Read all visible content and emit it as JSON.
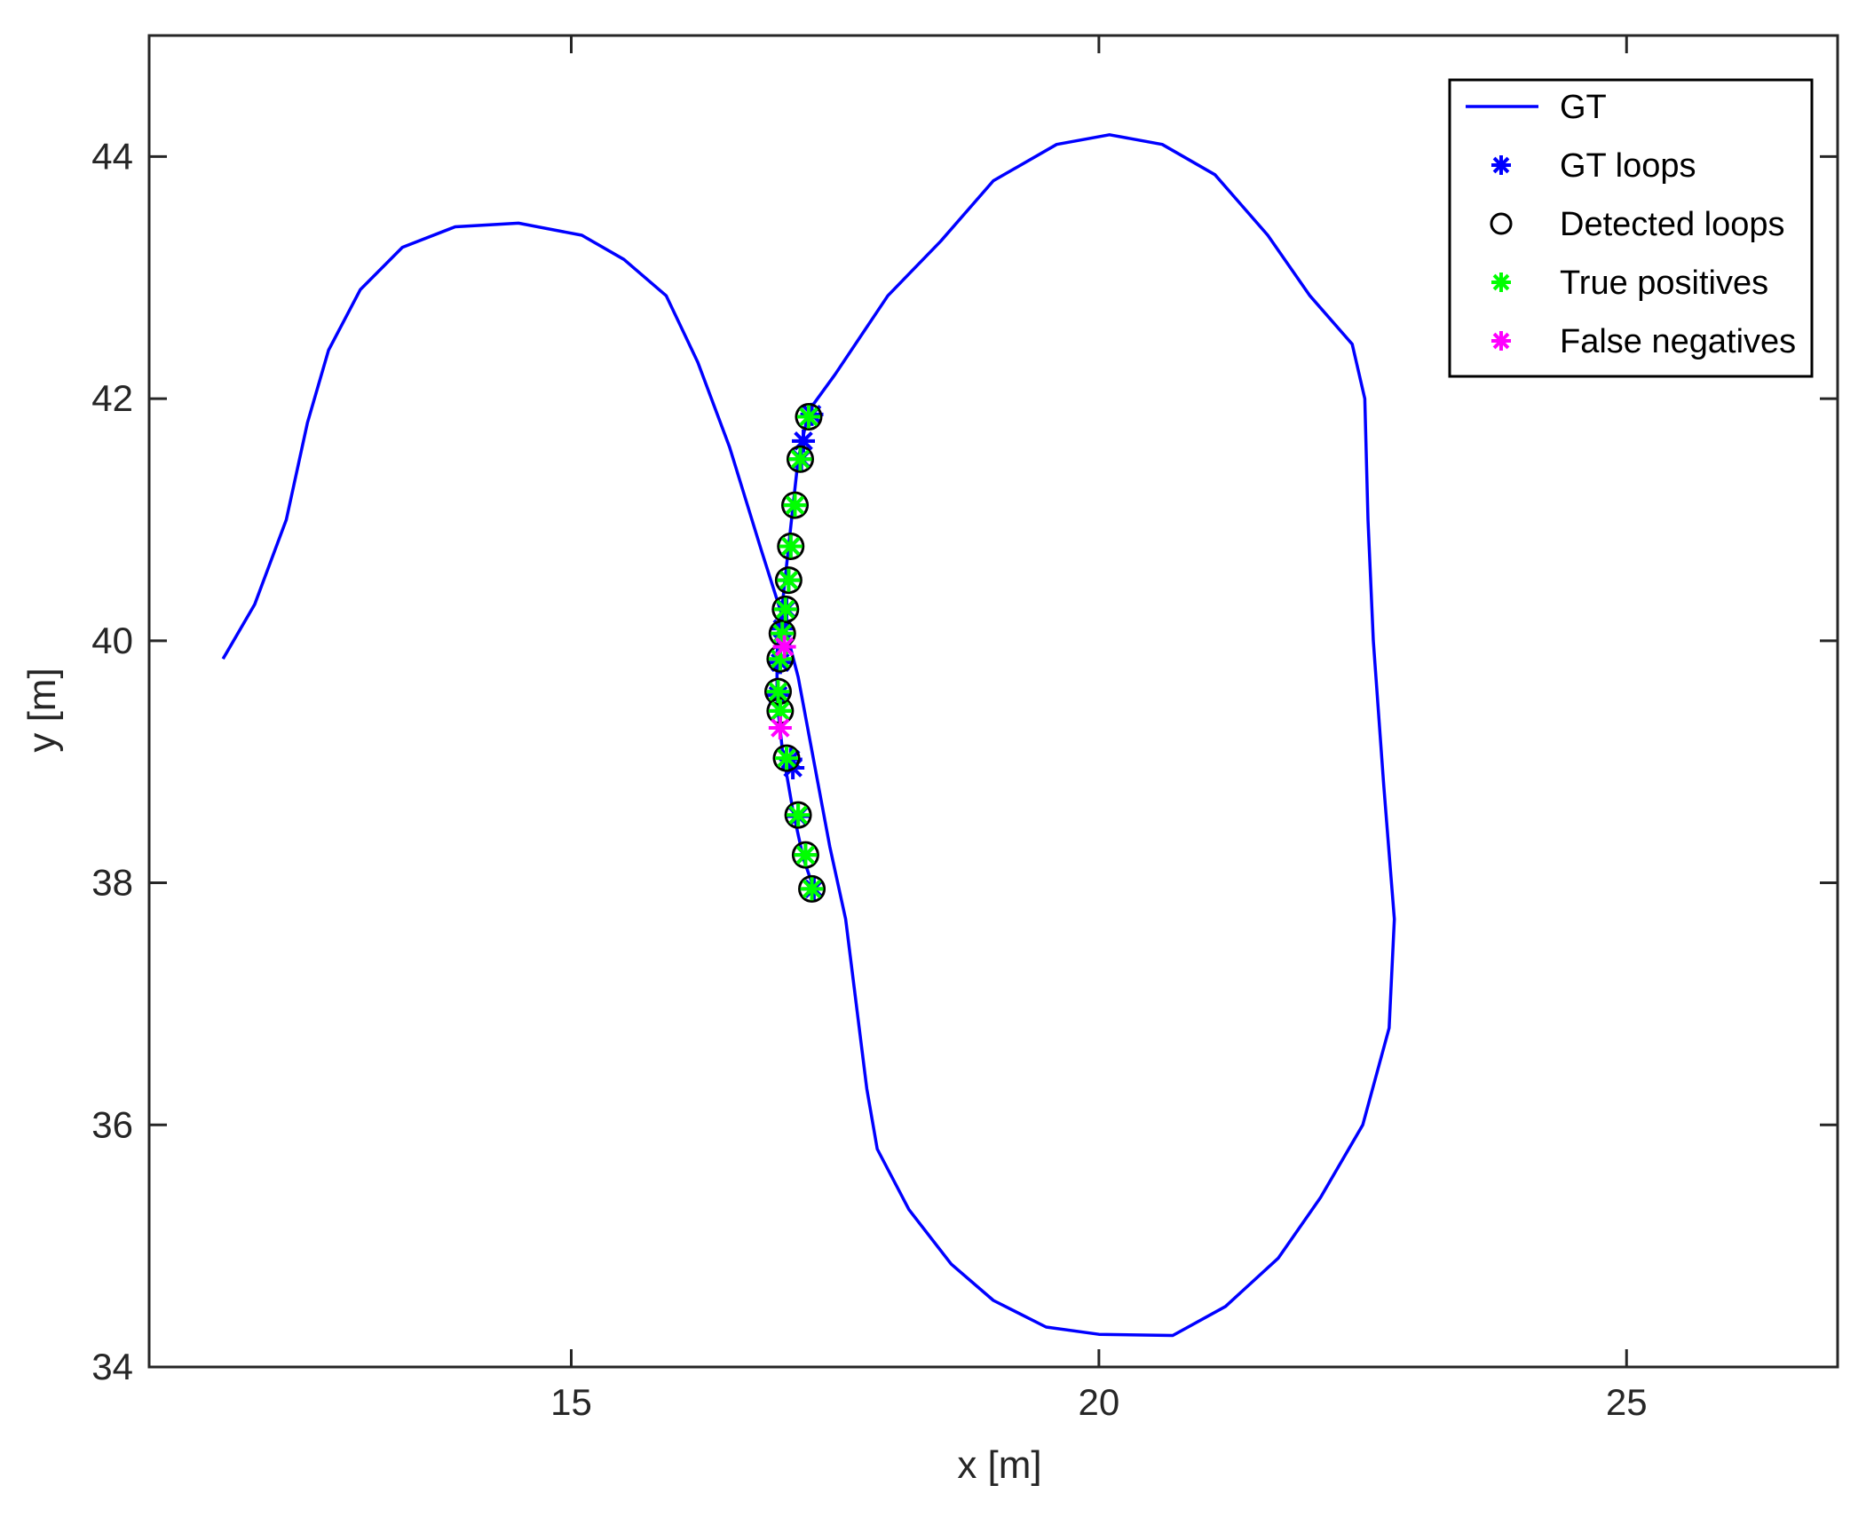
{
  "chart_data": {
    "type": "line",
    "xlabel": "x [m]",
    "ylabel": "y [m]",
    "xlim": [
      11,
      27
    ],
    "ylim": [
      34,
      45
    ],
    "xticks": [
      15,
      20,
      25
    ],
    "yticks": [
      34,
      36,
      38,
      40,
      42,
      44
    ],
    "grid": false,
    "legend_position": "top-right",
    "colors": {
      "gt": "#0000ff",
      "gt_loops": "#0000ff",
      "detected_loops": "#000000",
      "true_positives": "#00ff00",
      "false_negatives": "#ff00ff"
    },
    "legend": [
      {
        "label": "GT",
        "marker": "line",
        "color": "#0000ff"
      },
      {
        "label": "GT loops",
        "marker": "asterisk",
        "color": "#0000ff"
      },
      {
        "label": "Detected loops",
        "marker": "circle",
        "color": "#000000"
      },
      {
        "label": "True positives",
        "marker": "asterisk",
        "color": "#00ff00"
      },
      {
        "label": "False negatives",
        "marker": "asterisk",
        "color": "#ff00ff"
      }
    ],
    "series": [
      {
        "name": "GT",
        "kind": "line",
        "points": [
          [
            11.7,
            39.85
          ],
          [
            12.0,
            40.3
          ],
          [
            12.3,
            41.0
          ],
          [
            12.5,
            41.8
          ],
          [
            12.7,
            42.4
          ],
          [
            13.0,
            42.9
          ],
          [
            13.4,
            43.25
          ],
          [
            13.9,
            43.42
          ],
          [
            14.5,
            43.45
          ],
          [
            15.1,
            43.35
          ],
          [
            15.5,
            43.15
          ],
          [
            15.9,
            42.85
          ],
          [
            16.2,
            42.3
          ],
          [
            16.5,
            41.6
          ],
          [
            16.8,
            40.75
          ],
          [
            17.0,
            40.2
          ],
          [
            17.15,
            39.7
          ],
          [
            17.3,
            39.0
          ],
          [
            17.45,
            38.3
          ],
          [
            17.6,
            37.7
          ],
          [
            17.7,
            37.0
          ],
          [
            17.8,
            36.3
          ],
          [
            17.9,
            35.8
          ],
          [
            18.2,
            35.3
          ],
          [
            18.6,
            34.85
          ],
          [
            19.0,
            34.55
          ],
          [
            19.5,
            34.33
          ],
          [
            20.0,
            34.27
          ],
          [
            20.7,
            34.26
          ],
          [
            21.2,
            34.5
          ],
          [
            21.7,
            34.9
          ],
          [
            22.1,
            35.4
          ],
          [
            22.5,
            36.0
          ],
          [
            22.75,
            36.8
          ],
          [
            22.8,
            37.7
          ],
          [
            22.7,
            38.8
          ],
          [
            22.6,
            40.0
          ],
          [
            22.55,
            41.0
          ],
          [
            22.52,
            42.0
          ],
          [
            22.4,
            42.45
          ],
          [
            22.0,
            42.85
          ],
          [
            21.6,
            43.35
          ],
          [
            21.1,
            43.85
          ],
          [
            20.6,
            44.1
          ],
          [
            20.1,
            44.18
          ],
          [
            19.6,
            44.1
          ],
          [
            19.0,
            43.8
          ],
          [
            18.5,
            43.3
          ],
          [
            18.0,
            42.85
          ],
          [
            17.5,
            42.2
          ],
          [
            17.25,
            41.9
          ],
          [
            17.15,
            41.5
          ],
          [
            17.1,
            41.1
          ],
          [
            17.05,
            40.7
          ],
          [
            17.0,
            40.3
          ],
          [
            16.95,
            39.9
          ],
          [
            16.95,
            39.5
          ],
          [
            17.0,
            39.1
          ],
          [
            17.1,
            38.6
          ],
          [
            17.2,
            38.2
          ],
          [
            17.3,
            37.95
          ]
        ]
      },
      {
        "name": "GT loops",
        "kind": "markers",
        "points": [
          [
            17.28,
            41.87
          ],
          [
            17.2,
            41.65
          ],
          [
            17.18,
            41.5
          ],
          [
            17.12,
            41.12
          ],
          [
            17.08,
            40.78
          ],
          [
            17.06,
            40.5
          ],
          [
            17.04,
            40.26
          ],
          [
            17.0,
            40.1
          ],
          [
            16.98,
            39.82
          ],
          [
            16.96,
            39.55
          ],
          [
            16.98,
            39.42
          ],
          [
            17.08,
            39.02
          ],
          [
            17.1,
            38.95
          ],
          [
            17.15,
            38.55
          ],
          [
            17.22,
            38.23
          ],
          [
            17.3,
            37.95
          ]
        ]
      },
      {
        "name": "Detected loops",
        "kind": "markers",
        "points": [
          [
            17.25,
            41.85
          ],
          [
            17.17,
            41.5
          ],
          [
            17.12,
            41.12
          ],
          [
            17.08,
            40.78
          ],
          [
            17.06,
            40.5
          ],
          [
            17.03,
            40.26
          ],
          [
            17.0,
            40.06
          ],
          [
            16.98,
            39.85
          ],
          [
            16.96,
            39.58
          ],
          [
            16.98,
            39.42
          ],
          [
            17.04,
            39.03
          ],
          [
            17.15,
            38.56
          ],
          [
            17.22,
            38.23
          ],
          [
            17.28,
            37.95
          ]
        ]
      },
      {
        "name": "True positives",
        "kind": "markers",
        "points": [
          [
            17.25,
            41.85
          ],
          [
            17.17,
            41.5
          ],
          [
            17.12,
            41.12
          ],
          [
            17.08,
            40.78
          ],
          [
            17.06,
            40.5
          ],
          [
            17.03,
            40.26
          ],
          [
            17.0,
            40.06
          ],
          [
            16.98,
            39.85
          ],
          [
            16.96,
            39.58
          ],
          [
            16.98,
            39.42
          ],
          [
            17.04,
            39.03
          ],
          [
            17.15,
            38.56
          ],
          [
            17.22,
            38.23
          ],
          [
            17.28,
            37.95
          ]
        ]
      },
      {
        "name": "False negatives",
        "kind": "markers",
        "points": [
          [
            17.02,
            39.95
          ],
          [
            16.98,
            39.28
          ]
        ]
      }
    ]
  }
}
